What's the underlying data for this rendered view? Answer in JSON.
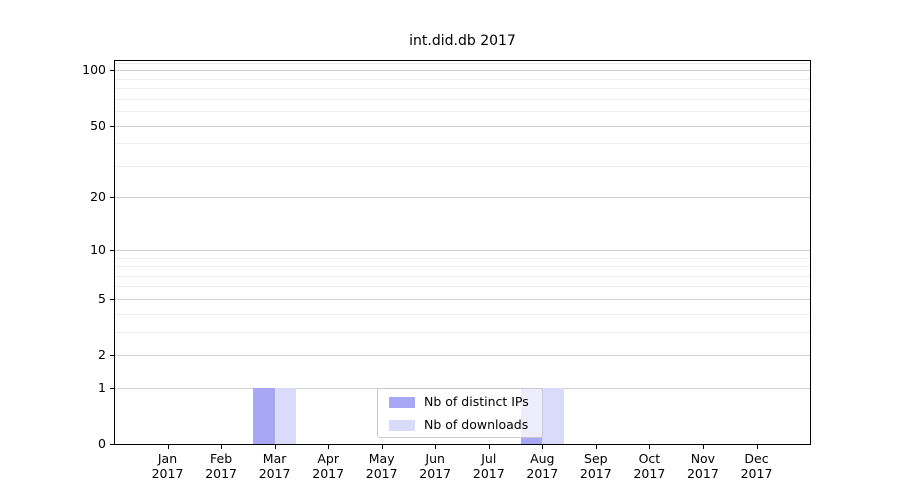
{
  "chart_data": {
    "type": "bar",
    "title": "int.did.db 2017",
    "categories": [
      "Jan",
      "Feb",
      "Mar",
      "Apr",
      "May",
      "Jun",
      "Jul",
      "Aug",
      "Sep",
      "Oct",
      "Nov",
      "Dec"
    ],
    "x_year_label": "2017",
    "series": [
      {
        "name": "Nb of distinct IPs",
        "color": "#a7a7f6",
        "values": [
          0,
          0,
          1,
          0,
          0,
          0,
          0,
          1,
          0,
          0,
          0,
          0
        ]
      },
      {
        "name": "Nb of downloads",
        "color": "#dadafb",
        "values": [
          0,
          0,
          1,
          0,
          0,
          0,
          0,
          1,
          0,
          0,
          0,
          0
        ]
      }
    ],
    "y_axis": {
      "scale": "log1p",
      "major_ticks": [
        0,
        1,
        2,
        5,
        10,
        20,
        50,
        100
      ],
      "minor_ticks": [
        3,
        4,
        6,
        7,
        8,
        9,
        30,
        40,
        60,
        70,
        80,
        90,
        110
      ],
      "range": [
        0,
        113
      ]
    },
    "x_axis": {
      "tick_labels_two_lines": true
    },
    "legend": {
      "position": "lower center",
      "entries": [
        "Nb of distinct IPs",
        "Nb of downloads"
      ]
    },
    "grid": {
      "major_color": "#cfcfcf",
      "minor_color": "#ececec"
    }
  },
  "colors": {
    "background": "#ffffff",
    "spine": "#000000",
    "text": "#000000",
    "bar_distinct_ips": "#a7a7f6",
    "bar_downloads": "#dadafb"
  }
}
